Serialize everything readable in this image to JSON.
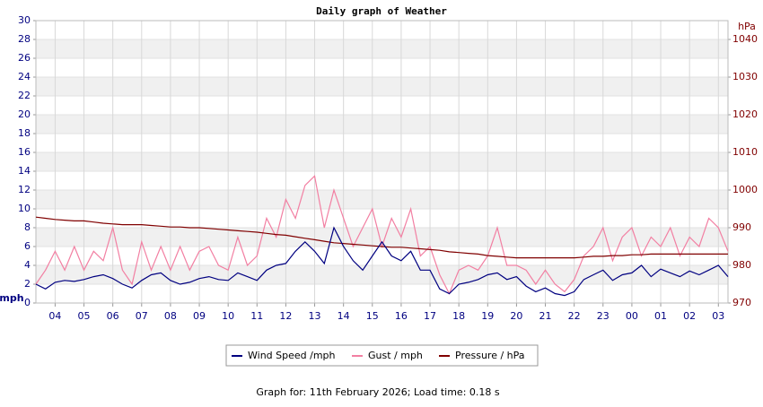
{
  "chart_data": {
    "type": "line",
    "title": "Daily graph of Weather",
    "y_label": "mph",
    "y2_label": "hPa",
    "footer": "Graph for: 11th February 2026; Load time: 0.18 s",
    "categories": [
      null,
      null,
      "04",
      null,
      null,
      "05",
      null,
      null,
      "06",
      null,
      null,
      "07",
      null,
      null,
      "08",
      null,
      null,
      "09",
      null,
      null,
      "10",
      null,
      null,
      "11",
      null,
      null,
      "12",
      null,
      null,
      "13",
      null,
      null,
      "14",
      null,
      null,
      "15",
      null,
      null,
      "16",
      null,
      null,
      "17",
      null,
      null,
      "18",
      null,
      null,
      "19",
      null,
      null,
      "20",
      null,
      null,
      "21",
      null,
      null,
      "22",
      null,
      null,
      "23",
      null,
      null,
      "00",
      null,
      null,
      "01",
      null,
      null,
      "02",
      null,
      null,
      "03",
      null
    ],
    "series": [
      {
        "name": "Wind Speed /mph",
        "color": "#000080",
        "values": [
          2,
          1.5,
          2.2,
          2.4,
          2.3,
          2.5,
          2.8,
          3.0,
          2.6,
          2.0,
          1.6,
          2.4,
          3.0,
          3.2,
          2.4,
          2.0,
          2.2,
          2.6,
          2.8,
          2.5,
          2.4,
          3.2,
          2.8,
          2.4,
          3.5,
          4.0,
          4.2,
          5.5,
          6.5,
          5.5,
          4.2,
          8.0,
          6.0,
          4.5,
          3.5,
          5.0,
          6.5,
          5.0,
          4.5,
          5.5,
          3.5,
          3.5,
          1.5,
          1.0,
          2.0,
          2.2,
          2.5,
          3.0,
          3.2,
          2.5,
          2.8,
          1.8,
          1.2,
          1.6,
          1.0,
          0.8,
          1.2,
          2.5,
          3.0,
          3.5,
          2.4,
          3.0,
          3.2,
          4.0,
          2.8,
          3.6,
          3.2,
          2.8,
          3.4,
          3.0,
          3.5,
          4.0,
          2.8
        ]
      },
      {
        "name": "Gust / mph",
        "color": "#f27fa2",
        "values": [
          2,
          3.5,
          5.5,
          3.5,
          6,
          3.5,
          5.5,
          4.5,
          8,
          3.5,
          2,
          6.5,
          3.5,
          6,
          3.5,
          6,
          3.5,
          5.5,
          6,
          4,
          3.5,
          7,
          4,
          5,
          9,
          7,
          11,
          9,
          12.5,
          13.5,
          8,
          12,
          9,
          6,
          8,
          10,
          6,
          9,
          7,
          10,
          5,
          6,
          3,
          1,
          3.5,
          4,
          3.5,
          5,
          8,
          4,
          4,
          3.5,
          2,
          3.5,
          2,
          1.2,
          2.5,
          5,
          6,
          8,
          4.5,
          7,
          8,
          5,
          7,
          6,
          8,
          5,
          7,
          6,
          9,
          8,
          5.5
        ]
      },
      {
        "name": "Pressure / hPa",
        "color": "#800000",
        "axis": "y2",
        "values": [
          992.8,
          992.5,
          992.2,
          992,
          991.8,
          991.8,
          991.5,
          991.2,
          991,
          990.8,
          990.8,
          990.8,
          990.6,
          990.4,
          990.2,
          990.2,
          990,
          990,
          989.8,
          989.6,
          989.4,
          989.2,
          989,
          988.8,
          988.5,
          988.2,
          988,
          987.6,
          987.2,
          986.8,
          986.4,
          986,
          985.8,
          985.6,
          985.4,
          985.2,
          985,
          984.8,
          984.8,
          984.6,
          984.4,
          984.2,
          984,
          983.6,
          983.4,
          983.2,
          983,
          982.6,
          982.4,
          982.2,
          982,
          982,
          982,
          982,
          982,
          982,
          982,
          982.2,
          982.4,
          982.4,
          982.6,
          982.6,
          982.8,
          982.8,
          983,
          983,
          983,
          983,
          983,
          983,
          983,
          983,
          983
        ]
      }
    ],
    "ylim": [
      0,
      30
    ],
    "yticks": [
      0,
      2,
      4,
      6,
      8,
      10,
      12,
      14,
      16,
      18,
      20,
      22,
      24,
      26,
      28,
      30
    ],
    "y2lim": [
      970,
      1045
    ],
    "y2ticks": [
      970,
      980,
      990,
      1000,
      1010,
      1020,
      1030,
      1040
    ],
    "grid": true,
    "legend": "bottom"
  }
}
